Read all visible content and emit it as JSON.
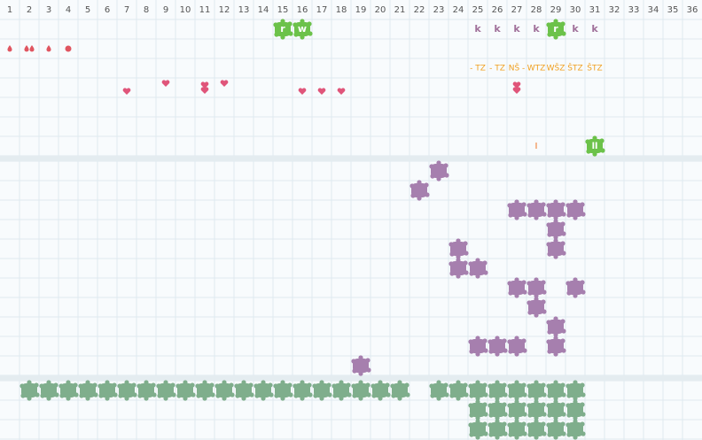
{
  "columns": [
    1,
    2,
    3,
    4,
    5,
    6,
    7,
    8,
    9,
    10,
    11,
    12,
    13,
    14,
    15,
    16,
    17,
    18,
    19,
    20,
    21,
    22,
    23,
    24,
    25,
    26,
    27,
    28,
    29,
    30,
    31,
    32,
    33,
    34,
    35,
    36
  ],
  "top_row1": [
    "r",
    "w",
    "k",
    "k",
    "k",
    "k",
    "r",
    "k",
    "k"
  ],
  "top_row3": [
    "- TZ",
    "- TZ",
    "NŠ -",
    "WTZ",
    "WŠZ",
    "ŠTZ",
    "ŠTZ"
  ],
  "top_row7": [
    "I",
    "ll"
  ]
}
